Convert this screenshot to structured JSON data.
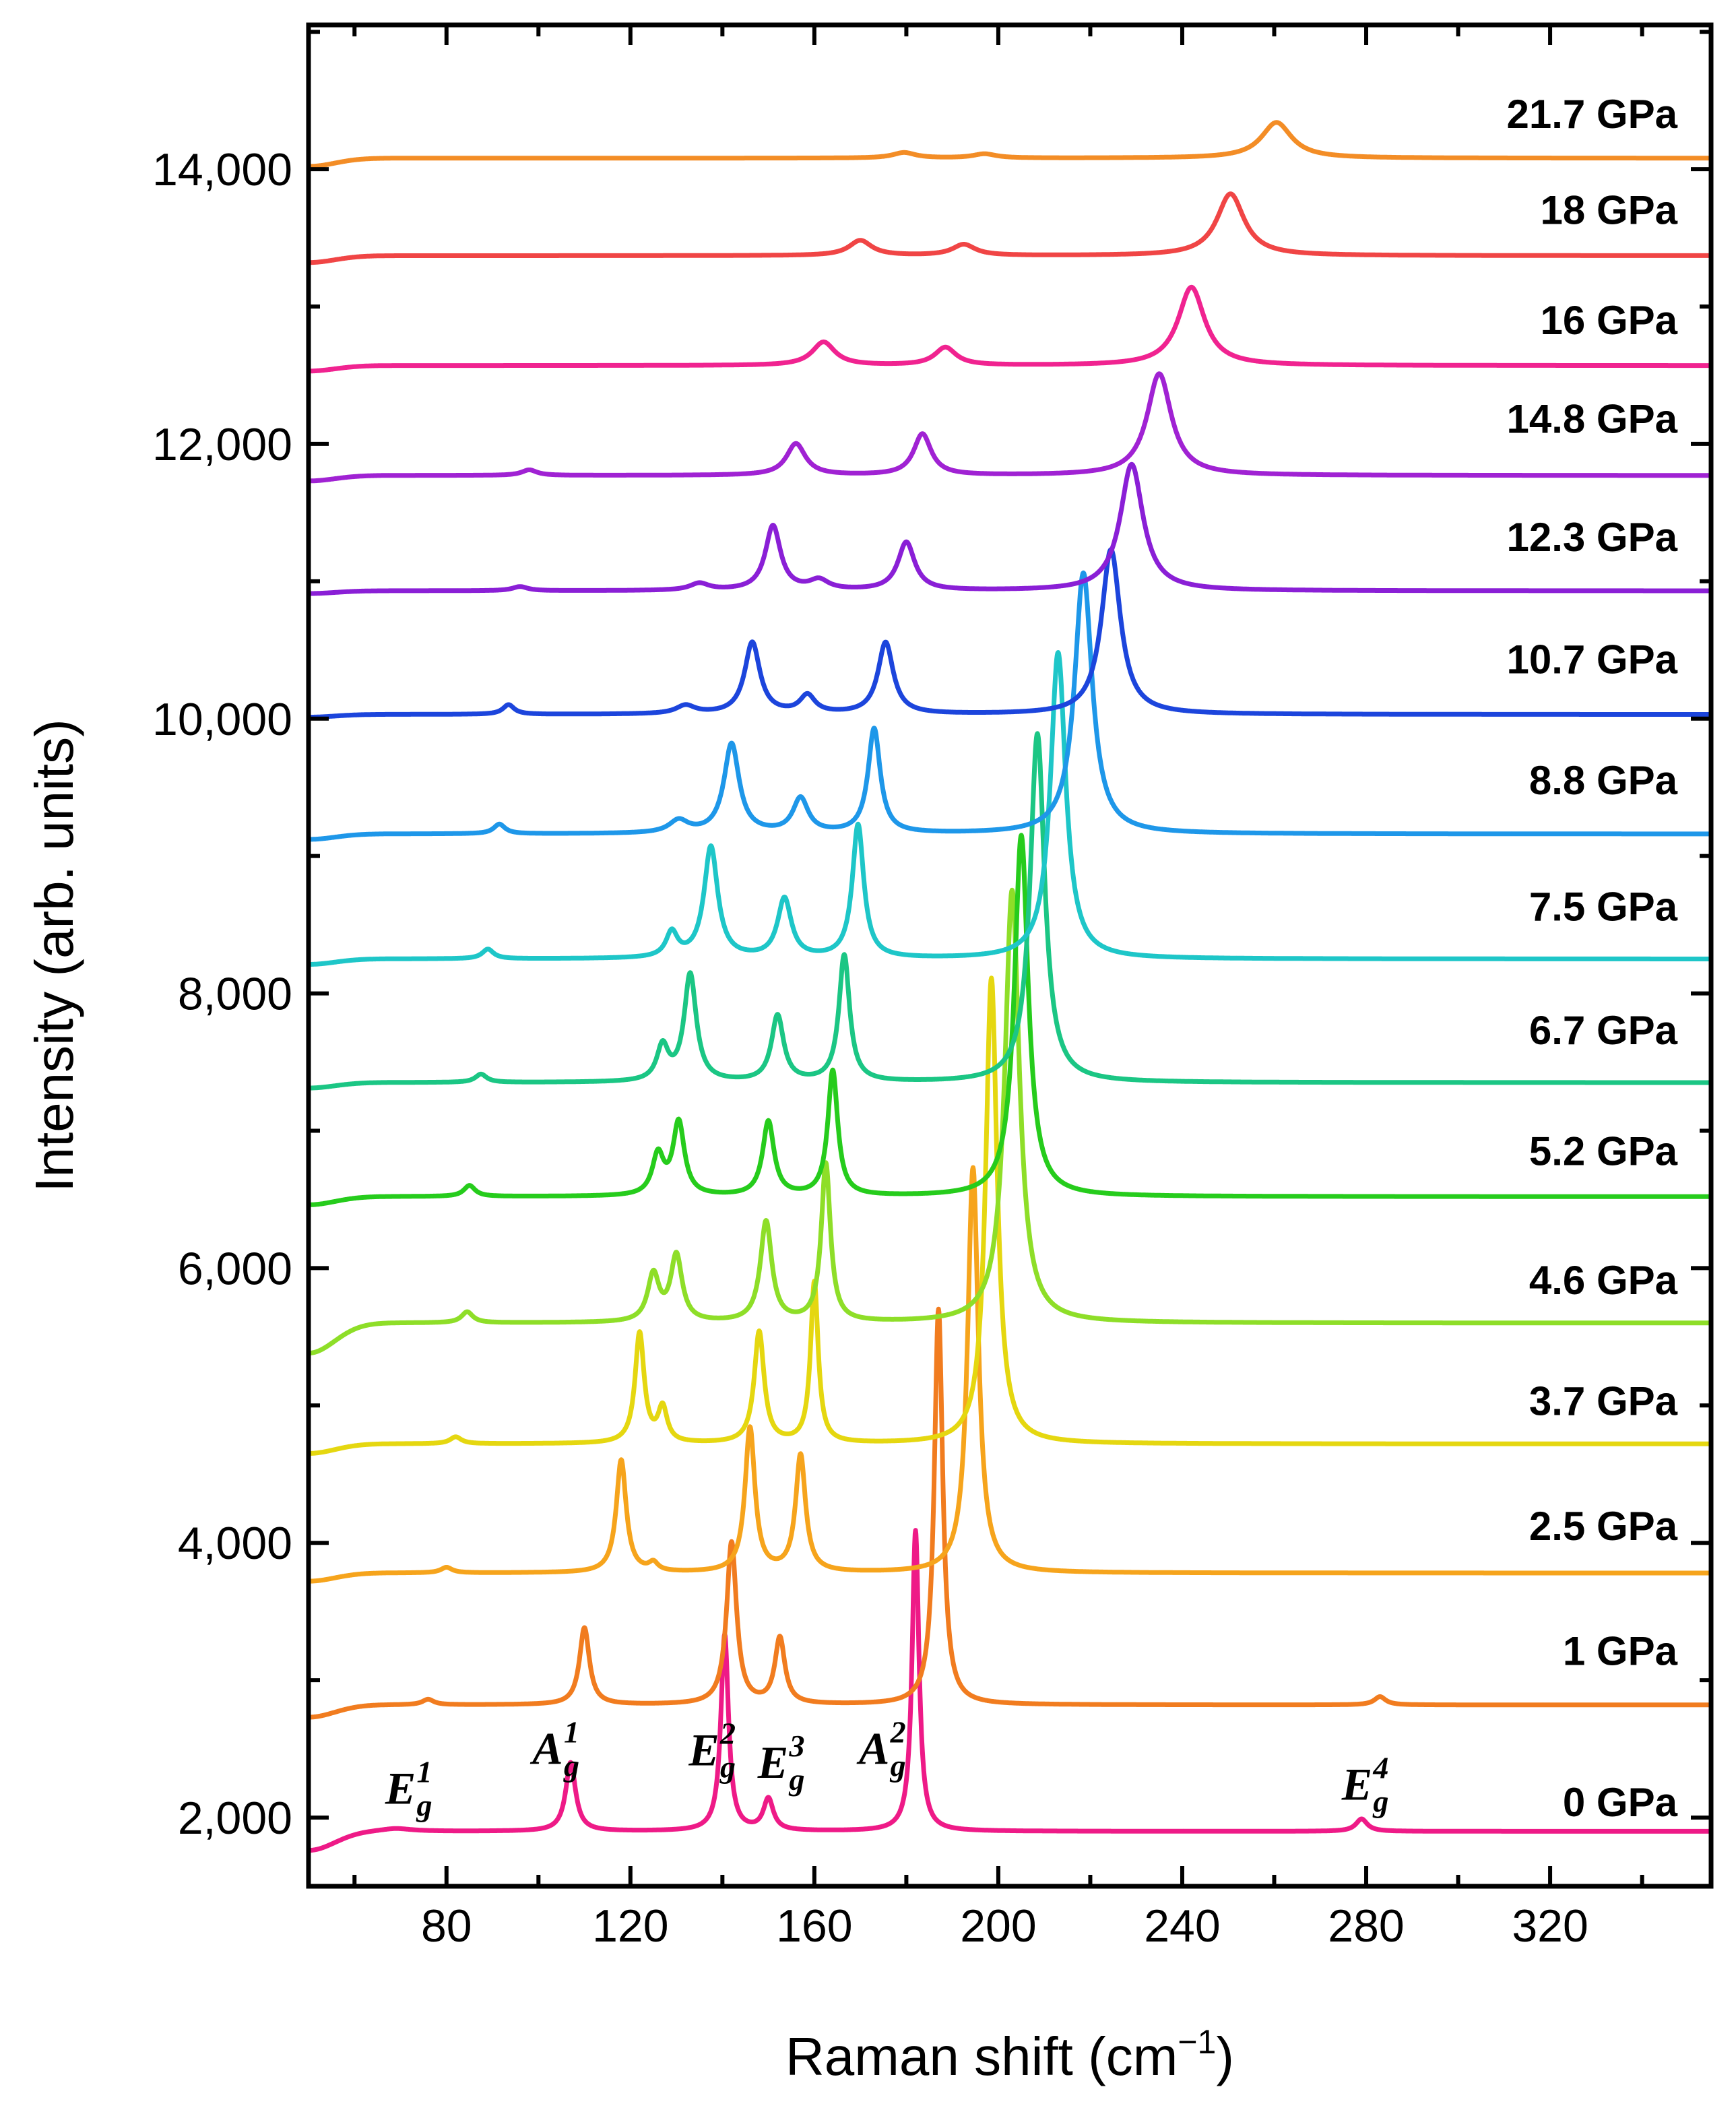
{
  "chart_data": {
    "type": "line",
    "title": "",
    "xlabel": "Raman shift (cm",
    "xlabel_sup": "−1",
    "xlabel_close": ")",
    "ylabel": "Intensity (arb. units)",
    "xlim": [
      50,
      355
    ],
    "ylim": [
      1500,
      15050
    ],
    "xticks": [
      80,
      120,
      160,
      200,
      240,
      280,
      320
    ],
    "yticks": [
      2000,
      4000,
      6000,
      8000,
      10000,
      12000,
      14000
    ],
    "ytick_labels": [
      "2,000",
      "4,000",
      "6,000",
      "8,000",
      "10,000",
      "12,000",
      "14,000"
    ],
    "grid": false,
    "legend": "inline labels at right",
    "series": [
      {
        "name": "0 GPa",
        "color": "#ee1a87",
        "baseline": 1900,
        "start_drop": 140,
        "label_y": 2010,
        "peaks": [
          [
            69,
            20,
            4
          ],
          [
            107,
            500,
            1.3
          ],
          [
            140.5,
            1430,
            1.0
          ],
          [
            150,
            230,
            1.3
          ],
          [
            182,
            2190,
            0.9
          ],
          [
            279,
            90,
            1.5
          ]
        ]
      },
      {
        "name": "1 GPa",
        "color": "#f17c1f",
        "baseline": 2820,
        "start_drop": 90,
        "label_y": 3110,
        "peaks": [
          [
            76,
            40,
            1.5
          ],
          [
            110,
            560,
            1.3
          ],
          [
            142,
            1180,
            1.3
          ],
          [
            152.5,
            480,
            1.3
          ],
          [
            187,
            2880,
            1.1
          ],
          [
            283,
            60,
            1.5
          ]
        ]
      },
      {
        "name": "2.5 GPa",
        "color": "#f6a41c",
        "baseline": 3780,
        "start_drop": 60,
        "label_y": 4020,
        "peaks": [
          [
            80,
            40,
            1.5
          ],
          [
            118,
            820,
            1.3
          ],
          [
            125,
            60,
            1.2
          ],
          [
            146,
            1050,
            1.3
          ],
          [
            157,
            850,
            1.3
          ],
          [
            194.5,
            2950,
            1.4
          ]
        ]
      },
      {
        "name": "3.7 GPa",
        "color": "#e5d710",
        "baseline": 4720,
        "start_drop": 70,
        "label_y": 4930,
        "peaks": [
          [
            82,
            50,
            1.5
          ],
          [
            122,
            800,
            1.2
          ],
          [
            127,
            250,
            1.2
          ],
          [
            148,
            810,
            1.3
          ],
          [
            160,
            1170,
            1.0
          ],
          [
            198.5,
            3390,
            1.5
          ]
        ]
      },
      {
        "name": "4.6 GPa",
        "color": "#8ede28",
        "baseline": 5600,
        "start_drop": 220,
        "label_y": 5810,
        "peaks": [
          [
            84.5,
            80,
            1.5
          ],
          [
            125,
            340,
            1.5
          ],
          [
            130,
            480,
            1.5
          ],
          [
            149.5,
            730,
            1.5
          ],
          [
            162.5,
            1150,
            1.2
          ],
          [
            203,
            3150,
            1.9
          ]
        ]
      },
      {
        "name": "5.2 GPa",
        "color": "#26cc1c",
        "baseline": 6520,
        "start_drop": 60,
        "label_y": 6750,
        "peaks": [
          [
            85,
            80,
            1.5
          ],
          [
            126,
            290,
            1.5
          ],
          [
            130.5,
            530,
            1.5
          ],
          [
            150,
            540,
            1.5
          ],
          [
            164,
            910,
            1.3
          ],
          [
            205,
            2630,
            1.8
          ]
        ]
      },
      {
        "name": "6.7 GPa",
        "color": "#1bc684",
        "baseline": 7350,
        "start_drop": 40,
        "label_y": 7630,
        "peaks": [
          [
            87.5,
            60,
            1.5
          ],
          [
            127,
            250,
            1.5
          ],
          [
            133,
            780,
            1.6
          ],
          [
            152,
            480,
            1.6
          ],
          [
            166.5,
            920,
            1.4
          ],
          [
            208.5,
            2540,
            1.9
          ]
        ]
      },
      {
        "name": "7.5 GPa",
        "color": "#1ec6c8",
        "baseline": 8250,
        "start_drop": 40,
        "label_y": 8530,
        "peaks": [
          [
            89,
            70,
            1.5
          ],
          [
            129,
            180,
            1.5
          ],
          [
            137.5,
            810,
            1.8
          ],
          [
            153.5,
            430,
            1.8
          ],
          [
            169.5,
            970,
            1.5
          ],
          [
            213,
            2230,
            2.0
          ]
        ]
      },
      {
        "name": "8.8 GPa",
        "color": "#1e97e9",
        "baseline": 9160,
        "start_drop": 40,
        "label_y": 9450,
        "peaks": [
          [
            91.5,
            70,
            1.5
          ],
          [
            130.5,
            90,
            2.5
          ],
          [
            142,
            650,
            2.0
          ],
          [
            157,
            250,
            2.0
          ],
          [
            173,
            760,
            1.6
          ],
          [
            218.5,
            1900,
            2.3
          ]
        ]
      },
      {
        "name": "10.7 GPa",
        "color": "#1c45dc",
        "baseline": 10030,
        "start_drop": 20,
        "label_y": 10330,
        "peaks": [
          [
            93.5,
            70,
            1.5
          ],
          [
            132,
            60,
            2.5
          ],
          [
            146.5,
            520,
            2.0
          ],
          [
            158.5,
            130,
            2.0
          ],
          [
            175.5,
            520,
            2.0
          ],
          [
            224.5,
            1200,
            2.5
          ]
        ]
      },
      {
        "name": "12.3 GPa",
        "color": "#8a1fd6",
        "baseline": 10930,
        "start_drop": 20,
        "label_y": 11220,
        "peaks": [
          [
            96,
            30,
            2.0
          ],
          [
            135,
            50,
            2.5
          ],
          [
            151,
            470,
            2.0
          ],
          [
            161,
            70,
            2.5
          ],
          [
            180,
            350,
            2.2
          ],
          [
            229,
            920,
            3.0
          ]
        ]
      },
      {
        "name": "14.8 GPa",
        "color": "#a022d3",
        "baseline": 11770,
        "start_drop": 40,
        "label_y": 12080,
        "peaks": [
          [
            98,
            40,
            2.0
          ],
          [
            156,
            230,
            2.5
          ],
          [
            183.5,
            300,
            2.3
          ],
          [
            235,
            740,
            3.2
          ]
        ]
      },
      {
        "name": "16 GPa",
        "color": "#f02390",
        "baseline": 12570,
        "start_drop": 40,
        "label_y": 12800,
        "peaks": [
          [
            162,
            170,
            3.0
          ],
          [
            188.5,
            130,
            2.8
          ],
          [
            242,
            570,
            3.5
          ]
        ]
      },
      {
        "name": "18 GPa",
        "color": "#f04545",
        "baseline": 13370,
        "start_drop": 50,
        "label_y": 13600,
        "peaks": [
          [
            170,
            110,
            3.0
          ],
          [
            192.5,
            80,
            3.0
          ],
          [
            250.5,
            450,
            3.6
          ]
        ]
      },
      {
        "name": "21.7 GPa",
        "color": "#f38d26",
        "baseline": 14080,
        "start_drop": 60,
        "label_y": 14300,
        "peaks": [
          [
            179.5,
            40,
            3.0
          ],
          [
            197,
            30,
            3.0
          ],
          [
            260.5,
            260,
            4.0
          ]
        ]
      }
    ],
    "annotations": [
      {
        "name": "mode-eg1",
        "main": "E",
        "sup": "1",
        "sub": "g",
        "x": 70,
        "y": 2100
      },
      {
        "name": "mode-ag1",
        "main": "A",
        "sup": "1",
        "sub": "g",
        "x": 102,
        "y": 2390
      },
      {
        "name": "mode-eg2",
        "main": "E",
        "sup": "2",
        "sub": "g",
        "x": 136,
        "y": 2380
      },
      {
        "name": "mode-eg3",
        "main": "E",
        "sup": "3",
        "sub": "g",
        "x": 151,
        "y": 2290
      },
      {
        "name": "mode-ag2",
        "main": "A",
        "sup": "2",
        "sub": "g",
        "x": 173,
        "y": 2390
      },
      {
        "name": "mode-eg4",
        "main": "E",
        "sup": "4",
        "sub": "g",
        "x": 278,
        "y": 2130
      }
    ]
  }
}
